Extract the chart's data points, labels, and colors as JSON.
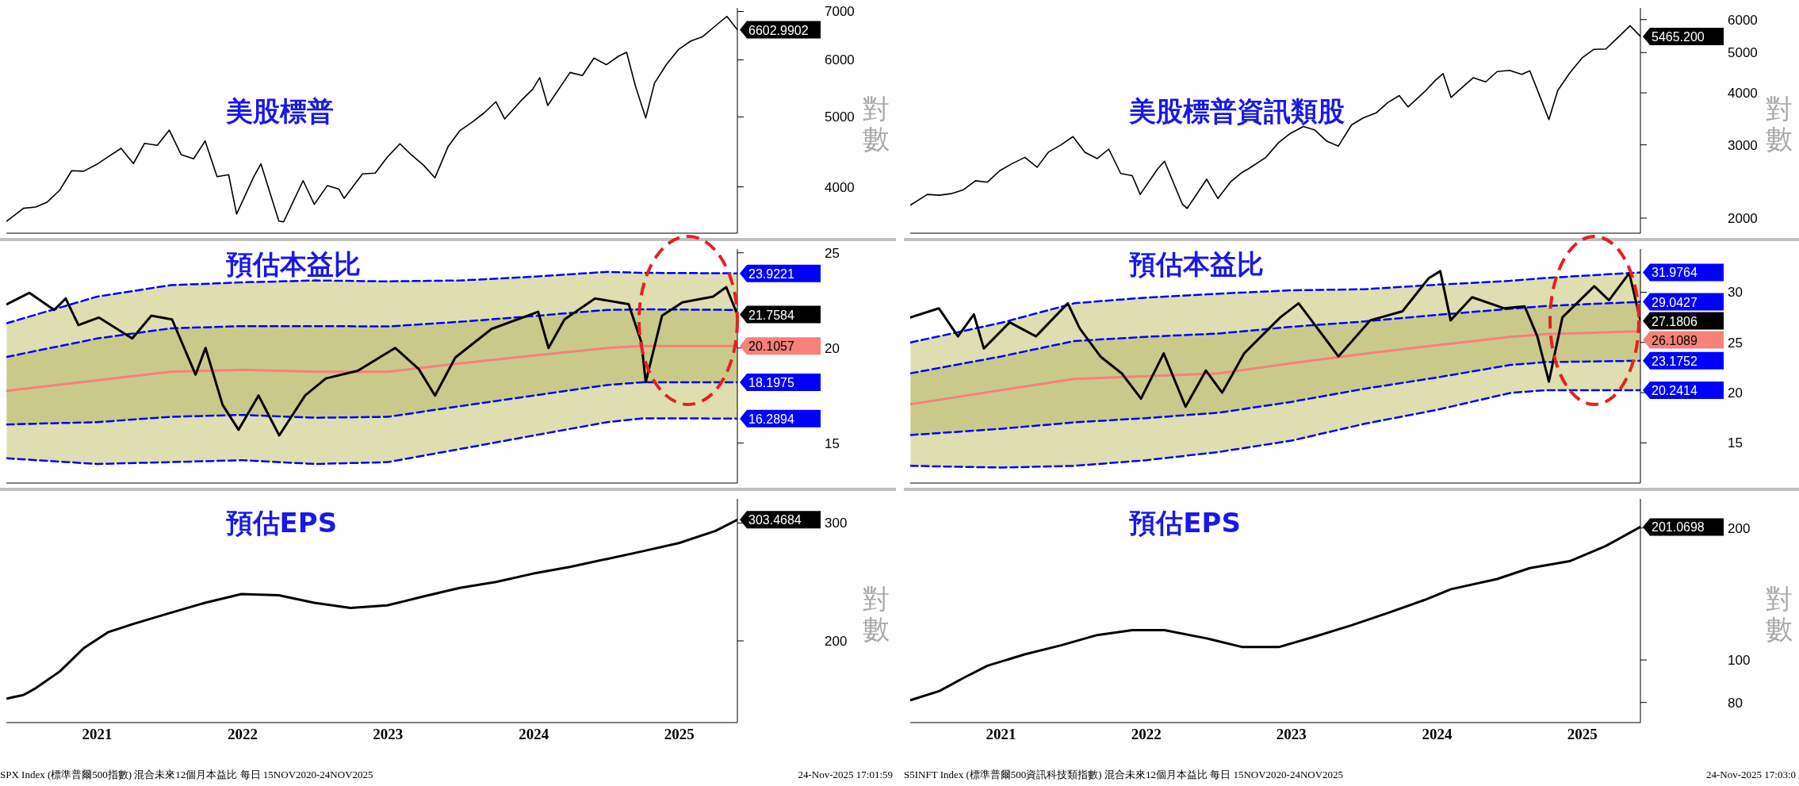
{
  "chart_data": [
    {
      "type": "line",
      "title": "美股標普",
      "ylabel": "對數",
      "log": true,
      "tick_labels": "y",
      "xlim": [
        "2020-11-15",
        "2025-11-24"
      ],
      "ylim": [
        3450,
        7080
      ],
      "yticks": [
        4000,
        5000,
        6000,
        7000
      ],
      "x": [
        "2020-11-16",
        "2020-12-28",
        "2021-01-28",
        "2021-02-26",
        "2021-03-29",
        "2021-04-28",
        "2021-05-28",
        "2021-06-28",
        "2021-07-28",
        "2021-08-30",
        "2021-09-30",
        "2021-10-28",
        "2021-11-29",
        "2021-12-29",
        "2022-01-28",
        "2022-02-28",
        "2022-03-29",
        "2022-04-28",
        "2022-05-27",
        "2022-06-16",
        "2022-07-29",
        "2022-08-16",
        "2022-09-30",
        "2022-10-12",
        "2022-11-30",
        "2022-12-28",
        "2023-01-30",
        "2023-02-28",
        "2023-03-13",
        "2023-04-28",
        "2023-05-30",
        "2023-06-29",
        "2023-07-31",
        "2023-08-28",
        "2023-09-28",
        "2023-10-27",
        "2023-11-29",
        "2023-12-28",
        "2024-01-30",
        "2024-02-28",
        "2024-03-28",
        "2024-04-19",
        "2024-05-30",
        "2024-06-28",
        "2024-07-16",
        "2024-08-05",
        "2024-09-30",
        "2024-10-31",
        "2024-11-29",
        "2024-12-30",
        "2025-01-30",
        "2025-02-19",
        "2025-03-13",
        "2025-04-08",
        "2025-04-30",
        "2025-05-30",
        "2025-06-30",
        "2025-07-30",
        "2025-08-29",
        "2025-09-30",
        "2025-10-29",
        "2025-11-24"
      ],
      "series": [
        {
          "color": "#000000",
          "values": [
            3585,
            3735,
            3750,
            3811,
            3958,
            4211,
            4204,
            4291,
            4400,
            4523,
            4308,
            4596,
            4567,
            4793,
            4432,
            4374,
            4631,
            4132,
            4158,
            3667,
            4130,
            4305,
            3586,
            3577,
            4080,
            3783,
            4017,
            3970,
            3856,
            4169,
            4180,
            4396,
            4589,
            4433,
            4288,
            4117,
            4550,
            4783,
            4925,
            5069,
            5248,
            4967,
            5266,
            5460,
            5667,
            5186,
            5762,
            5705,
            6032,
            5907,
            6071,
            6144,
            5521,
            4983,
            5569,
            5912,
            6205,
            6370,
            6460,
            6688,
            6890,
            6602.9902
          ],
          "value_labels": [
            null,
            null,
            null,
            null,
            null,
            null,
            null,
            null,
            null,
            null,
            null,
            null,
            null,
            null,
            null,
            null,
            null,
            null,
            null,
            null,
            null,
            null,
            null,
            null,
            null,
            null,
            null,
            null,
            null,
            null,
            null,
            null,
            null,
            null,
            null,
            null,
            null,
            null,
            null,
            null,
            null,
            null,
            null,
            null,
            null,
            null,
            null,
            null,
            null,
            null,
            null,
            null,
            null,
            null,
            null,
            null,
            null,
            null,
            null,
            null,
            null,
            "6602.9902"
          ]
        }
      ]
    },
    {
      "type": "line",
      "title": "美股標普資訊類股",
      "ylabel": "對數",
      "log": true,
      "tick_labels": "y",
      "xlim": [
        "2020-11-15",
        "2025-11-24"
      ],
      "ylim": [
        1840,
        6400
      ],
      "yticks": [
        2000,
        3000,
        4000,
        5000,
        6000
      ],
      "x": [
        "2020-11-16",
        "2020-12-28",
        "2021-01-28",
        "2021-02-26",
        "2021-03-29",
        "2021-04-28",
        "2021-05-28",
        "2021-06-28",
        "2021-07-28",
        "2021-08-30",
        "2021-09-30",
        "2021-10-28",
        "2021-11-29",
        "2021-12-29",
        "2022-01-28",
        "2022-02-28",
        "2022-03-29",
        "2022-04-28",
        "2022-05-27",
        "2022-06-16",
        "2022-07-29",
        "2022-08-16",
        "2022-09-30",
        "2022-10-12",
        "2022-11-30",
        "2022-12-28",
        "2023-01-30",
        "2023-02-28",
        "2023-03-13",
        "2023-04-28",
        "2023-05-30",
        "2023-06-29",
        "2023-07-31",
        "2023-08-28",
        "2023-09-28",
        "2023-10-27",
        "2023-11-29",
        "2023-12-28",
        "2024-01-30",
        "2024-02-28",
        "2024-03-28",
        "2024-04-19",
        "2024-05-30",
        "2024-06-28",
        "2024-07-16",
        "2024-08-05",
        "2024-09-30",
        "2024-10-31",
        "2024-11-29",
        "2024-12-30",
        "2025-01-30",
        "2025-02-19",
        "2025-03-13",
        "2025-04-08",
        "2025-04-30",
        "2025-05-30",
        "2025-06-30",
        "2025-07-30",
        "2025-08-29",
        "2025-09-30",
        "2025-10-29",
        "2025-11-24"
      ],
      "series": [
        {
          "color": "#000000",
          "values": [
            2150,
            2280,
            2270,
            2290,
            2340,
            2460,
            2440,
            2600,
            2700,
            2800,
            2650,
            2880,
            3000,
            3140,
            2880,
            2780,
            2930,
            2560,
            2530,
            2280,
            2620,
            2740,
            2160,
            2110,
            2480,
            2230,
            2450,
            2580,
            2620,
            2800,
            3040,
            3200,
            3320,
            3260,
            3060,
            2980,
            3350,
            3480,
            3580,
            3790,
            3940,
            3700,
            4020,
            4300,
            4450,
            3900,
            4350,
            4250,
            4500,
            4530,
            4430,
            4520,
            4000,
            3450,
            4050,
            4460,
            4850,
            5090,
            5100,
            5450,
            5800,
            5465.2
          ],
          "value_labels": [
            null,
            null,
            null,
            null,
            null,
            null,
            null,
            null,
            null,
            null,
            null,
            null,
            null,
            null,
            null,
            null,
            null,
            null,
            null,
            null,
            null,
            null,
            null,
            null,
            null,
            null,
            null,
            null,
            null,
            null,
            null,
            null,
            null,
            null,
            null,
            null,
            null,
            null,
            null,
            null,
            null,
            null,
            null,
            null,
            null,
            null,
            null,
            null,
            null,
            null,
            null,
            null,
            null,
            null,
            null,
            null,
            null,
            null,
            null,
            null,
            null,
            "5465.200"
          ]
        }
      ]
    },
    {
      "type": "line",
      "title": "預估本益比",
      "tick_labels": "y",
      "xlim": [
        "2020-11-15",
        "2025-11-24"
      ],
      "ylim": [
        12.9,
        25.2
      ],
      "yticks": [
        15,
        20,
        25
      ],
      "series": [
        {
          "color": "#000000",
          "x": [
            "2020-11-16",
            "2021-01-12",
            "2021-03-15",
            "2021-04-13",
            "2021-05-15",
            "2021-07-05",
            "2021-09-27",
            "2021-11-14",
            "2022-01-05",
            "2022-03-05",
            "2022-03-30",
            "2022-05-12",
            "2022-06-21",
            "2022-08-10",
            "2022-10-01",
            "2022-12-05",
            "2023-01-26",
            "2023-04-16",
            "2023-07-19",
            "2023-09-16",
            "2023-10-27",
            "2023-12-17",
            "2024-03-17",
            "2024-07-12",
            "2024-08-07",
            "2024-09-16",
            "2024-12-02",
            "2025-02-24",
            "2025-03-28",
            "2025-04-08",
            "2025-05-19",
            "2025-07-09",
            "2025-09-24",
            "2025-10-27",
            "2025-11-24"
          ],
          "values": [
            22.3,
            22.9,
            22.0,
            22.6,
            21.2,
            21.6,
            20.5,
            21.7,
            21.5,
            18.6,
            20.0,
            17.0,
            15.7,
            17.5,
            15.4,
            17.5,
            18.4,
            18.8,
            20.0,
            18.9,
            17.5,
            19.5,
            21.0,
            21.9,
            20.0,
            21.5,
            22.6,
            22.3,
            20.3,
            18.2,
            21.7,
            22.4,
            22.7,
            23.2,
            21.7584
          ],
          "value_labels": [
            null,
            null,
            null,
            null,
            null,
            null,
            null,
            null,
            null,
            null,
            null,
            null,
            null,
            null,
            null,
            null,
            null,
            null,
            null,
            null,
            null,
            null,
            null,
            null,
            null,
            null,
            null,
            null,
            null,
            null,
            null,
            null,
            null,
            null,
            "21.7584"
          ]
        },
        {
          "color": "#0000ff",
          "line_style": "dashed",
          "x": [
            "2020-11-16",
            "2021-07-01",
            "2022-01-01",
            "2022-07-01",
            "2023-01-01",
            "2023-07-01",
            "2024-01-01",
            "2024-07-01",
            "2025-01-01",
            "2025-04-01",
            "2025-11-24"
          ],
          "values": [
            21.3,
            22.7,
            23.3,
            23.45,
            23.55,
            23.5,
            23.55,
            23.75,
            24.0,
            23.95,
            23.9221
          ],
          "value_labels": [
            null,
            null,
            null,
            null,
            null,
            null,
            null,
            null,
            null,
            null,
            "23.9221"
          ]
        },
        {
          "color": "#0000ff",
          "line_style": "dashed",
          "x": [
            "2020-11-16",
            "2021-07-01",
            "2022-01-01",
            "2022-07-01",
            "2023-01-01",
            "2023-07-01",
            "2024-01-01",
            "2024-07-01",
            "2025-01-01",
            "2025-04-01",
            "2025-11-24"
          ],
          "values": [
            19.53,
            20.5,
            21.03,
            21.15,
            21.15,
            21.13,
            21.38,
            21.68,
            22.0,
            22.03,
            22.0
          ],
          "lower": [
            15.98,
            16.1,
            16.38,
            16.48,
            16.33,
            16.38,
            16.95,
            17.5,
            18.05,
            18.2,
            18.1975
          ],
          "upper": [
            19.53,
            20.5,
            21.03,
            21.15,
            21.15,
            21.13,
            21.38,
            21.68,
            22.0,
            22.03,
            22.0
          ]
        },
        {
          "color": "#f4817a",
          "x": [
            "2020-11-16",
            "2021-07-01",
            "2022-01-01",
            "2022-07-01",
            "2023-01-01",
            "2023-07-01",
            "2024-01-01",
            "2024-07-01",
            "2025-01-01",
            "2025-04-01",
            "2025-11-24"
          ],
          "values": [
            17.75,
            18.3,
            18.75,
            18.85,
            18.75,
            18.75,
            19.2,
            19.6,
            20.0,
            20.1,
            20.1057
          ],
          "lower": [
            14.2,
            13.9,
            14.0,
            14.1,
            13.9,
            14.0,
            14.7,
            15.4,
            16.1,
            16.3,
            16.2894
          ],
          "upper": [
            21.3,
            22.7,
            23.3,
            23.45,
            23.55,
            23.5,
            23.55,
            23.75,
            24.0,
            23.95,
            23.9221
          ],
          "value_labels": [
            null,
            null,
            null,
            null,
            null,
            null,
            null,
            null,
            null,
            null,
            "20.1057"
          ]
        },
        {
          "color": "#0000ff",
          "line_style": "dashed",
          "x": [
            "2020-11-16",
            "2021-07-01",
            "2022-01-01",
            "2022-07-01",
            "2023-01-01",
            "2023-07-01",
            "2024-01-01",
            "2024-07-01",
            "2025-01-01",
            "2025-04-01",
            "2025-11-24"
          ],
          "values": [
            15.98,
            16.1,
            16.38,
            16.48,
            16.33,
            16.38,
            16.95,
            17.5,
            18.05,
            18.2,
            18.1975
          ],
          "value_labels": [
            null,
            null,
            null,
            null,
            null,
            null,
            null,
            null,
            null,
            null,
            "18.1975"
          ]
        },
        {
          "color": "#0000ff",
          "line_style": "dashed",
          "x": [
            "2020-11-16",
            "2021-07-01",
            "2022-01-01",
            "2022-07-01",
            "2023-01-01",
            "2023-07-01",
            "2024-01-01",
            "2024-07-01",
            "2025-01-01",
            "2025-04-01",
            "2025-11-24"
          ],
          "values": [
            14.2,
            13.9,
            14.0,
            14.1,
            13.9,
            14.0,
            14.7,
            15.4,
            16.1,
            16.3,
            16.2894
          ],
          "value_labels": [
            null,
            null,
            null,
            null,
            null,
            null,
            null,
            null,
            null,
            null,
            "16.2894"
          ]
        }
      ]
    },
    {
      "type": "line",
      "title": "預估本益比",
      "tick_labels": "y",
      "xlim": [
        "2020-11-15",
        "2025-11-24"
      ],
      "ylim": [
        11,
        34.3
      ],
      "yticks": [
        15,
        20,
        25,
        30
      ],
      "series": [
        {
          "color": "#000000",
          "x": [
            "2020-11-16",
            "2021-01-26",
            "2021-03-15",
            "2021-04-24",
            "2021-05-19",
            "2021-07-23",
            "2021-09-27",
            "2021-12-16",
            "2022-01-15",
            "2022-03-08",
            "2022-05-01",
            "2022-06-18",
            "2022-08-14",
            "2022-10-08",
            "2022-11-28",
            "2023-01-08",
            "2023-03-04",
            "2023-06-03",
            "2023-07-19",
            "2023-10-01",
            "2023-10-27",
            "2024-01-15",
            "2024-04-05",
            "2024-06-10",
            "2024-07-09",
            "2024-08-04",
            "2024-09-27",
            "2024-12-16",
            "2025-02-06",
            "2025-03-10",
            "2025-04-08",
            "2025-05-12",
            "2025-07-31",
            "2025-09-06",
            "2025-10-27",
            "2025-11-24"
          ],
          "values": [
            27.5,
            28.4,
            25.6,
            27.8,
            24.4,
            27.0,
            25.6,
            28.9,
            26.4,
            23.6,
            21.9,
            19.4,
            23.9,
            18.6,
            22.2,
            20.0,
            23.9,
            27.5,
            28.9,
            25.0,
            23.6,
            27.2,
            28.1,
            31.4,
            32.1,
            27.2,
            29.5,
            28.4,
            28.6,
            25.6,
            21.1,
            27.5,
            30.6,
            29.2,
            31.9,
            27.1806
          ],
          "value_labels": [
            null,
            null,
            null,
            null,
            null,
            null,
            null,
            null,
            null,
            null,
            null,
            null,
            null,
            null,
            null,
            null,
            null,
            null,
            null,
            null,
            null,
            null,
            null,
            null,
            null,
            null,
            null,
            null,
            null,
            null,
            null,
            null,
            null,
            null,
            null,
            "27.1806"
          ]
        },
        {
          "color": "#0000ff",
          "line_style": "dashed",
          "x": [
            "2020-11-16",
            "2021-07-01",
            "2022-01-01",
            "2022-07-01",
            "2023-01-01",
            "2023-07-01",
            "2024-01-01",
            "2024-07-01",
            "2025-01-01",
            "2025-04-01",
            "2025-11-24"
          ],
          "values": [
            25.0,
            26.95,
            28.9,
            29.47,
            29.86,
            30.19,
            30.3,
            30.75,
            31.14,
            31.42,
            31.9764
          ],
          "value_labels": [
            null,
            null,
            null,
            null,
            null,
            null,
            null,
            null,
            null,
            null,
            "31.9764"
          ]
        },
        {
          "color": "#0000ff",
          "line_style": "dashed",
          "x": [
            "2020-11-16",
            "2021-07-01",
            "2022-01-01",
            "2022-07-01",
            "2023-01-01",
            "2023-07-01",
            "2024-01-01",
            "2024-07-01",
            "2025-01-01",
            "2025-04-01",
            "2025-11-24"
          ],
          "values": [
            21.93,
            23.6,
            25.14,
            25.56,
            25.89,
            26.56,
            27.09,
            27.74,
            28.35,
            28.63,
            29.0427
          ],
          "lower": [
            15.78,
            16.4,
            17.04,
            17.46,
            18.01,
            19.08,
            20.39,
            21.51,
            22.76,
            23.04,
            23.1752
          ],
          "upper": [
            21.93,
            23.6,
            25.14,
            25.56,
            25.89,
            26.56,
            27.09,
            27.74,
            28.35,
            28.63,
            29.0427
          ],
          "value_labels": [
            null,
            null,
            null,
            null,
            null,
            null,
            null,
            null,
            null,
            null,
            "29.0427"
          ]
        },
        {
          "color": "#f4817a",
          "x": [
            "2020-11-16",
            "2021-07-01",
            "2022-01-01",
            "2022-07-01",
            "2023-01-01",
            "2023-07-01",
            "2024-01-01",
            "2024-07-01",
            "2025-01-01",
            "2025-04-01",
            "2025-11-24"
          ],
          "values": [
            18.85,
            20.25,
            21.37,
            21.64,
            21.92,
            22.93,
            23.88,
            24.72,
            25.55,
            25.83,
            26.1089
          ],
          "lower": [
            12.71,
            12.54,
            12.71,
            13.27,
            14.1,
            15.22,
            16.9,
            18.29,
            19.97,
            20.25,
            20.2414
          ],
          "upper": [
            25.0,
            26.95,
            28.9,
            29.47,
            29.86,
            30.19,
            30.3,
            30.75,
            31.14,
            31.42,
            31.9764
          ],
          "value_labels": [
            null,
            null,
            null,
            null,
            null,
            null,
            null,
            null,
            null,
            null,
            "26.1089"
          ]
        },
        {
          "color": "#0000ff",
          "line_style": "dashed",
          "x": [
            "2020-11-16",
            "2021-07-01",
            "2022-01-01",
            "2022-07-01",
            "2023-01-01",
            "2023-07-01",
            "2024-01-01",
            "2024-07-01",
            "2025-01-01",
            "2025-04-01",
            "2025-11-24"
          ],
          "values": [
            15.78,
            16.4,
            17.04,
            17.46,
            18.01,
            19.08,
            20.39,
            21.51,
            22.76,
            23.04,
            23.1752
          ],
          "value_labels": [
            null,
            null,
            null,
            null,
            null,
            null,
            null,
            null,
            null,
            null,
            "23.1752"
          ]
        },
        {
          "color": "#0000ff",
          "line_style": "dashed",
          "x": [
            "2020-11-16",
            "2021-07-01",
            "2022-01-01",
            "2022-07-01",
            "2023-01-01",
            "2023-07-01",
            "2024-01-01",
            "2024-07-01",
            "2025-01-01",
            "2025-04-01",
            "2025-11-24"
          ],
          "values": [
            12.71,
            12.54,
            12.71,
            13.27,
            14.1,
            15.22,
            16.9,
            18.29,
            19.97,
            20.25,
            20.2414
          ],
          "value_labels": [
            null,
            null,
            null,
            null,
            null,
            null,
            null,
            null,
            null,
            null,
            "20.2414"
          ]
        }
      ]
    },
    {
      "type": "line",
      "title": "預估EPS",
      "ylabel": "對數",
      "log": true,
      "xlim": [
        "2020-11-15",
        "2025-11-24"
      ],
      "xticks": [
        {
          "value": "2021-07-01",
          "label": "2021"
        },
        {
          "value": "2022-07-01",
          "label": "2022"
        },
        {
          "value": "2023-07-01",
          "label": "2023"
        },
        {
          "value": "2024-07-01",
          "label": "2024"
        },
        {
          "value": "2025-07-01",
          "label": "2025"
        }
      ],
      "ylim": [
        151,
        326
      ],
      "yticks": [
        200,
        300
      ],
      "annotations": [
        "SPX Index (標準普爾500指數) 混合未來12個月本益比 每日 15NOV2020-24NOV2025",
        "24-Nov-2025 17:01:59"
      ],
      "series": [
        {
          "color": "#000000",
          "x": [
            "2020-11-16",
            "2020-12-28",
            "2021-01-28",
            "2021-03-29",
            "2021-05-28",
            "2021-07-28",
            "2021-09-30",
            "2021-12-29",
            "2022-03-29",
            "2022-06-28",
            "2022-09-30",
            "2022-12-28",
            "2023-03-29",
            "2023-06-29",
            "2023-09-28",
            "2023-12-28",
            "2024-03-28",
            "2024-06-28",
            "2024-09-30",
            "2024-12-30",
            "2025-03-28",
            "2025-06-30",
            "2025-09-30",
            "2025-11-24"
          ],
          "values": [
            164,
            166,
            170,
            180,
            195,
            206,
            212,
            220,
            228,
            235,
            234,
            228,
            224,
            226,
            233,
            240,
            245,
            252,
            258,
            265,
            272,
            280,
            292,
            303.4684
          ],
          "value_labels": [
            null,
            null,
            null,
            null,
            null,
            null,
            null,
            null,
            null,
            null,
            null,
            null,
            null,
            null,
            null,
            null,
            null,
            null,
            null,
            null,
            null,
            null,
            null,
            "303.4684"
          ]
        }
      ]
    },
    {
      "type": "line",
      "title": "預估EPS",
      "ylabel": "對數",
      "log": true,
      "xlim": [
        "2020-11-15",
        "2025-11-24"
      ],
      "xticks": [
        {
          "value": "2021-07-01",
          "label": "2021"
        },
        {
          "value": "2022-07-01",
          "label": "2022"
        },
        {
          "value": "2023-07-01",
          "label": "2023"
        },
        {
          "value": "2024-07-01",
          "label": "2024"
        },
        {
          "value": "2025-07-01",
          "label": "2025"
        }
      ],
      "ylim": [
        72,
        233
      ],
      "yticks": [
        80,
        100,
        200
      ],
      "annotations": [
        "S5INFT Index (標準普爾500資訊科技類指數) 混合未來12個月本益比 每日 15NOV2020-24NOV2025",
        "24-Nov-2025 17:03:0"
      ],
      "series": [
        {
          "color": "#000000",
          "x": [
            "2020-11-16",
            "2021-01-28",
            "2021-03-29",
            "2021-05-28",
            "2021-08-30",
            "2021-11-29",
            "2022-02-28",
            "2022-05-27",
            "2022-08-16",
            "2022-11-30",
            "2023-02-28",
            "2023-05-30",
            "2023-08-28",
            "2023-11-29",
            "2024-02-28",
            "2024-05-30",
            "2024-08-05",
            "2024-11-29",
            "2025-02-19",
            "2025-05-30",
            "2025-08-29",
            "2025-11-24"
          ],
          "values": [
            81,
            85,
            91,
            97,
            103,
            108,
            114,
            117,
            117,
            112,
            107,
            107,
            113,
            120,
            128,
            137,
            145,
            153,
            162,
            168,
            182,
            201.0698
          ],
          "value_labels": [
            null,
            null,
            null,
            null,
            null,
            null,
            null,
            null,
            null,
            null,
            null,
            null,
            null,
            null,
            null,
            null,
            null,
            null,
            null,
            null,
            null,
            "201.0698"
          ]
        }
      ]
    }
  ]
}
